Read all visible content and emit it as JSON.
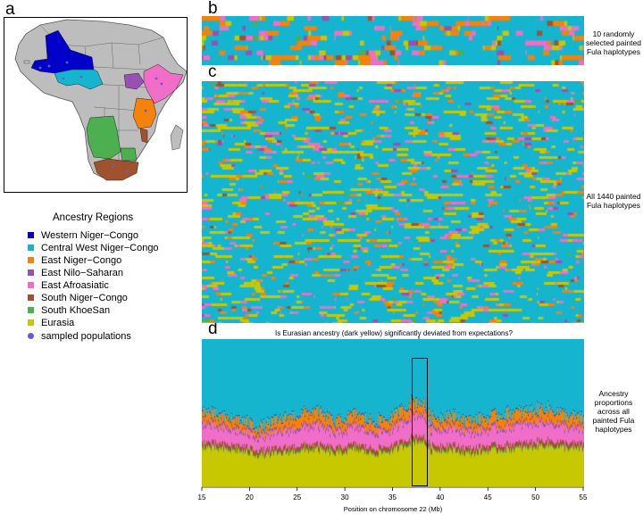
{
  "panel_labels": {
    "a": "a",
    "b": "b",
    "c": "c",
    "d": "d"
  },
  "legend": {
    "title": "Ancestry Regions",
    "items": [
      {
        "label": "Western Niger−Congo",
        "color": "#0000c8",
        "kind": "square"
      },
      {
        "label": "Central West Niger−Congo",
        "color": "#15b5cf",
        "kind": "square"
      },
      {
        "label": "East Niger−Congo",
        "color": "#f5820a",
        "kind": "square"
      },
      {
        "label": "East Nilo−Saharan",
        "color": "#9b4fb4",
        "kind": "square"
      },
      {
        "label": "East Afroasiatic",
        "color": "#f06ec8",
        "kind": "square"
      },
      {
        "label": "South Niger−Congo",
        "color": "#a0522d",
        "kind": "square"
      },
      {
        "label": "South KhoeSan",
        "color": "#4caf50",
        "kind": "square"
      },
      {
        "label": "Eurasia",
        "color": "#c8c800",
        "kind": "square"
      },
      {
        "label": "sampled populations",
        "color": "#6a5acd",
        "kind": "dot"
      }
    ]
  },
  "side_labels": {
    "b": "10 randomly selected painted Fula haplotypes",
    "c": "All 1440 painted Fula haplotypes",
    "d": "Ancestry proportions across all painted Fula haplotypes"
  },
  "question": "Is Eurasian ancestry (dark yellow) significantly deviated from expectations?",
  "chart_data": [
    {
      "type": "heatmap",
      "panel": "b",
      "rows": 10,
      "title": "",
      "categories_colors": [
        "#15b5cf",
        "#f5820a",
        "#f06ec8",
        "#c8c800",
        "#9b4fb4",
        "#a0522d",
        "#4caf50"
      ]
    },
    {
      "type": "heatmap",
      "panel": "c",
      "rows": 1440,
      "title": "",
      "categories_colors": [
        "#15b5cf",
        "#c8c800",
        "#f06ec8",
        "#f5820a",
        "#9b4fb4",
        "#a0522d",
        "#4caf50"
      ]
    },
    {
      "type": "area",
      "panel": "d",
      "title": "",
      "xlabel": "Position on chromosome 22 (Mb)",
      "ylabel": "",
      "xlim": [
        15,
        55
      ],
      "ylim": [
        0,
        1
      ],
      "xticks": [
        15,
        20,
        25,
        30,
        35,
        40,
        45,
        50,
        55
      ],
      "series": [
        {
          "name": "Eurasia",
          "color": "#c8c800",
          "x": [
            15,
            17,
            19,
            21,
            23,
            25,
            27,
            29,
            31,
            33,
            35,
            37,
            38,
            39,
            41,
            43,
            45,
            47,
            49,
            51,
            53,
            55
          ],
          "values": [
            0.27,
            0.25,
            0.24,
            0.21,
            0.22,
            0.24,
            0.25,
            0.22,
            0.25,
            0.22,
            0.24,
            0.3,
            0.31,
            0.24,
            0.25,
            0.22,
            0.24,
            0.25,
            0.26,
            0.28,
            0.26,
            0.25
          ]
        },
        {
          "name": "South KhoeSan",
          "color": "#4caf50",
          "x": [
            15,
            25,
            35,
            45,
            55
          ],
          "values": [
            0.01,
            0.01,
            0.01,
            0.01,
            0.01
          ]
        },
        {
          "name": "South Niger−Congo",
          "color": "#a0522d",
          "x": [
            15,
            25,
            35,
            45,
            55
          ],
          "values": [
            0.03,
            0.03,
            0.03,
            0.03,
            0.03
          ]
        },
        {
          "name": "East Afroasiatic",
          "color": "#f06ec8",
          "x": [
            15,
            17,
            19,
            21,
            23,
            25,
            27,
            29,
            31,
            33,
            35,
            37,
            38,
            39,
            41,
            43,
            45,
            47,
            49,
            51,
            53,
            55
          ],
          "values": [
            0.12,
            0.1,
            0.09,
            0.08,
            0.1,
            0.11,
            0.12,
            0.09,
            0.11,
            0.1,
            0.1,
            0.14,
            0.14,
            0.1,
            0.11,
            0.1,
            0.1,
            0.11,
            0.12,
            0.12,
            0.1,
            0.09
          ]
        },
        {
          "name": "East Nilo−Saharan",
          "color": "#9b4fb4",
          "x": [
            15,
            25,
            35,
            45,
            55
          ],
          "values": [
            0.02,
            0.02,
            0.02,
            0.02,
            0.02
          ]
        },
        {
          "name": "East Niger−Congo",
          "color": "#f5820a",
          "x": [
            15,
            17,
            19,
            21,
            23,
            25,
            27,
            29,
            31,
            33,
            35,
            37,
            38,
            39,
            41,
            43,
            45,
            47,
            49,
            51,
            53,
            55
          ],
          "values": [
            0.07,
            0.06,
            0.06,
            0.05,
            0.07,
            0.08,
            0.08,
            0.06,
            0.07,
            0.06,
            0.07,
            0.08,
            0.07,
            0.06,
            0.07,
            0.06,
            0.07,
            0.08,
            0.07,
            0.08,
            0.07,
            0.06
          ]
        },
        {
          "name": "Western Niger−Congo",
          "color": "#0000c8",
          "x": [
            15,
            25,
            35,
            45,
            55
          ],
          "values": [
            0.005,
            0.005,
            0.005,
            0.005,
            0.005
          ]
        },
        {
          "name": "Central West Niger−Congo",
          "color": "#15b5cf",
          "x": [
            15,
            55
          ],
          "values": [
            0.48,
            0.48
          ]
        }
      ],
      "highlight_x": [
        37,
        38.6
      ]
    }
  ]
}
